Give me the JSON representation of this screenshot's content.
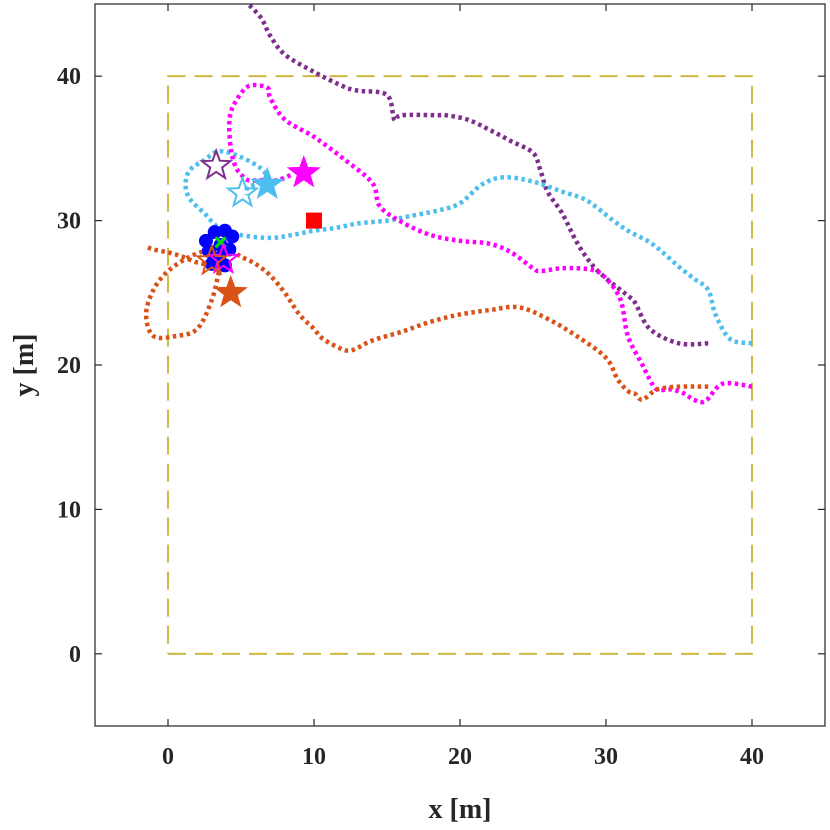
{
  "chart_data": {
    "type": "scatter",
    "xlabel": "x [m]",
    "ylabel": "y [m]",
    "xlim": [
      -5,
      45
    ],
    "ylim": [
      -5,
      45
    ],
    "xticks": [
      0,
      10,
      20,
      30,
      40
    ],
    "yticks": [
      0,
      10,
      20,
      30,
      40
    ],
    "xtick_labels": [
      "0",
      "10",
      "20",
      "30",
      "40"
    ],
    "ytick_labels": [
      "0",
      "10",
      "20",
      "30",
      "40"
    ],
    "grid": false,
    "boundary": {
      "name": "area-boundary",
      "color": "#C8B432",
      "x": [
        0,
        40,
        40,
        0,
        0
      ],
      "y": [
        0,
        0,
        40,
        40,
        0
      ]
    },
    "target": {
      "name": "target-square",
      "x": 10,
      "y": 30,
      "color": "#FF0000"
    },
    "cluster": {
      "color": "#0000FF",
      "points": [
        [
          2.6,
          28.6
        ],
        [
          3.2,
          29.2
        ],
        [
          3.9,
          29.3
        ],
        [
          4.4,
          28.9
        ],
        [
          2.8,
          27.9
        ],
        [
          4.2,
          28.0
        ],
        [
          3.5,
          27.4
        ],
        [
          3.0,
          27.0
        ],
        [
          3.9,
          26.9
        ],
        [
          3.6,
          28.3
        ]
      ]
    },
    "center_marker": {
      "name": "center-x-marker",
      "x": 3.6,
      "y": 28.5,
      "color": "#00DD00"
    },
    "series": [
      {
        "name": "purple-trajectory",
        "color": "#7E2F8E",
        "x": [
          37,
          35,
          33,
          32,
          31.5,
          30,
          29,
          28,
          27,
          26,
          25.5,
          25,
          23.5,
          22,
          20.5,
          19,
          18.5,
          16,
          15.5,
          15,
          13,
          12,
          10,
          8,
          7,
          6.4,
          5.5
        ],
        "y": [
          21.5,
          21.5,
          22.5,
          24.3,
          24.8,
          26.0,
          27.0,
          28.5,
          30.5,
          32.0,
          33.5,
          34.7,
          35.5,
          36.3,
          37.0,
          37.3,
          37.3,
          37.3,
          37.0,
          38.7,
          39.0,
          39.3,
          40.3,
          41.5,
          42.8,
          44,
          45
        ]
      },
      {
        "name": "cyan-trajectory",
        "color": "#4DBEEE",
        "x": [
          40,
          38.5,
          37.5,
          37,
          36,
          35,
          34,
          33,
          31.5,
          30.5,
          29.5,
          28.5,
          27,
          25,
          23,
          21.5,
          20,
          18.5,
          16.5,
          15,
          13,
          11.5,
          10,
          8.5,
          7,
          5,
          3.5,
          2.5,
          1.5,
          1.2,
          1.5,
          2.5,
          3.5,
          5,
          6.5,
          6.6,
          5.5,
          5.3
        ],
        "y": [
          21.5,
          21.8,
          23.5,
          25.2,
          26.0,
          26.8,
          27.7,
          28.5,
          29.3,
          30.0,
          30.8,
          31.5,
          32.0,
          32.7,
          33.0,
          32.5,
          31.2,
          30.7,
          30.3,
          30.0,
          29.8,
          29.5,
          29.3,
          29.0,
          28.8,
          29.0,
          29.5,
          30.5,
          31.5,
          32.5,
          33.5,
          34.2,
          34.8,
          34.4,
          33.5,
          32.8,
          32.3,
          31.8
        ]
      },
      {
        "name": "magenta-trajectory",
        "color": "#FF00FF",
        "x": [
          40,
          38,
          36.8,
          36,
          35.4,
          34.5,
          33.5,
          33,
          32.5,
          31.5,
          31,
          30,
          29,
          27,
          25.5,
          25,
          23.5,
          22,
          20,
          18,
          16,
          14.5,
          14,
          12,
          10,
          8,
          7,
          6.8,
          5.5,
          4.5,
          4.2,
          4.3,
          4.6,
          5,
          5.5,
          6.5,
          7.5,
          8.5
        ],
        "y": [
          18.5,
          18.7,
          17.5,
          17.6,
          18.0,
          18.3,
          18.3,
          19.0,
          20.0,
          22.0,
          24.5,
          26.0,
          26.6,
          26.7,
          26.5,
          26.7,
          27.8,
          28.4,
          28.6,
          29.0,
          29.9,
          31.0,
          32.6,
          34.3,
          35.8,
          37.0,
          38.5,
          39.2,
          39.3,
          38.0,
          36.8,
          35.0,
          33.8,
          33.2,
          32.8,
          32.8,
          32.8,
          33.2
        ]
      },
      {
        "name": "orange-trajectory",
        "color": "#D95319",
        "x": [
          37,
          35,
          33.5,
          32.5,
          32,
          31.5,
          30.8,
          30,
          28,
          26,
          24,
          22,
          20,
          18,
          16,
          14,
          12.5,
          11.5,
          10.5,
          10,
          9,
          8,
          7,
          6,
          5,
          4.5,
          3.8,
          3.5,
          3,
          2,
          0.5,
          -1,
          -1.5,
          -1,
          0,
          1.5,
          3,
          3.5,
          3,
          2,
          1,
          0,
          -1,
          -1.5
        ],
        "y": [
          18.5,
          18.5,
          18.3,
          17.6,
          18.0,
          18.2,
          19.0,
          20.5,
          22.0,
          23.2,
          24.0,
          23.8,
          23.5,
          23.0,
          22.3,
          21.7,
          21.0,
          21.3,
          21.9,
          22.5,
          23.5,
          25.0,
          26.2,
          27.0,
          27.5,
          27.8,
          27.5,
          26.5,
          24.5,
          22.5,
          22.0,
          22.0,
          23.5,
          25.2,
          26.5,
          27.5,
          28.0,
          27.6,
          27.0,
          27.1,
          27.5,
          27.8,
          28.0,
          28.2
        ]
      }
    ],
    "stars": [
      {
        "name": "purple-star-open",
        "x": 3.3,
        "y": 33.8,
        "color": "#7E2F8E",
        "filled": false
      },
      {
        "name": "cyan-star-open",
        "x": 5.1,
        "y": 31.9,
        "color": "#4DBEEE",
        "filled": false
      },
      {
        "name": "cyan-star-filled",
        "x": 6.8,
        "y": 32.5,
        "color": "#4DBEEE",
        "filled": true
      },
      {
        "name": "magenta-star-filled",
        "x": 9.3,
        "y": 33.3,
        "color": "#FF00FF",
        "filled": true
      },
      {
        "name": "magenta-star-open",
        "x": 3.8,
        "y": 27.3,
        "color": "#FF00FF",
        "filled": false
      },
      {
        "name": "orange-star-open",
        "x": 3.0,
        "y": 27.2,
        "color": "#D95319",
        "filled": false
      },
      {
        "name": "orange-star-filled",
        "x": 4.3,
        "y": 25.0,
        "color": "#D95319",
        "filled": true
      }
    ]
  }
}
